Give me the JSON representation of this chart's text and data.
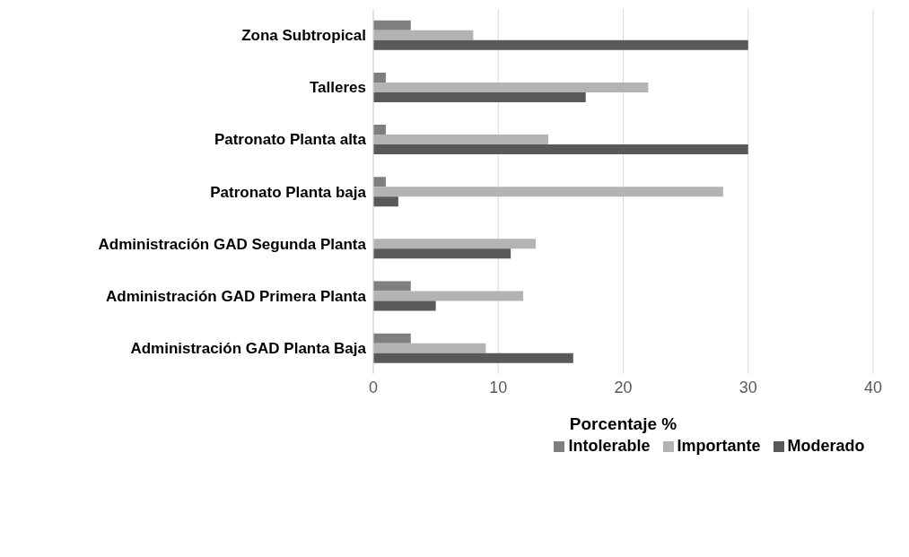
{
  "chart_data": {
    "type": "bar",
    "orientation": "horizontal",
    "xlabel": "Porcentaje %",
    "categories": [
      "Zona Subtropical",
      "Talleres",
      "Patronato Planta alta",
      "Patronato Planta baja",
      "Administración GAD  Segunda Planta",
      "Administración GAD  Primera Planta",
      "Administración GAD  Planta Baja"
    ],
    "series": [
      {
        "name": "Intolerable",
        "color": "#7f7f7f",
        "values": [
          3,
          1,
          1,
          1,
          0,
          3,
          3
        ]
      },
      {
        "name": "Importante",
        "color": "#b3b3b3",
        "values": [
          8,
          22,
          14,
          28,
          13,
          12,
          9
        ]
      },
      {
        "name": "Moderado",
        "color": "#595959",
        "values": [
          30,
          17,
          30,
          2,
          11,
          5,
          16
        ]
      }
    ],
    "xlim": [
      0,
      40
    ],
    "xticks": [
      0,
      10,
      20,
      30,
      40
    ],
    "grid": "x",
    "legend": "bottom"
  }
}
